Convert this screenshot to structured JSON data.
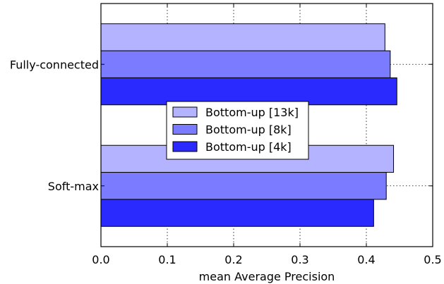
{
  "chart_data": {
    "type": "bar",
    "orientation": "horizontal",
    "title": "",
    "xlabel": "mean Average Precision",
    "ylabel": "",
    "xlim": [
      0.0,
      0.5
    ],
    "xticks": [
      "0.0",
      "0.1",
      "0.2",
      "0.3",
      "0.4",
      "0.5"
    ],
    "grid": true,
    "legend_position": "center",
    "categories": [
      "Fully-connected",
      "Soft-max"
    ],
    "series": [
      {
        "name": "Bottom-up [13k]",
        "color": "#b3b3ff",
        "values": [
          0.428,
          0.441
        ]
      },
      {
        "name": "Bottom-up [8k]",
        "color": "#7b7bff",
        "values": [
          0.436,
          0.43
        ]
      },
      {
        "name": "Bottom-up [4k]",
        "color": "#2a2aff",
        "values": [
          0.446,
          0.411
        ]
      }
    ]
  }
}
